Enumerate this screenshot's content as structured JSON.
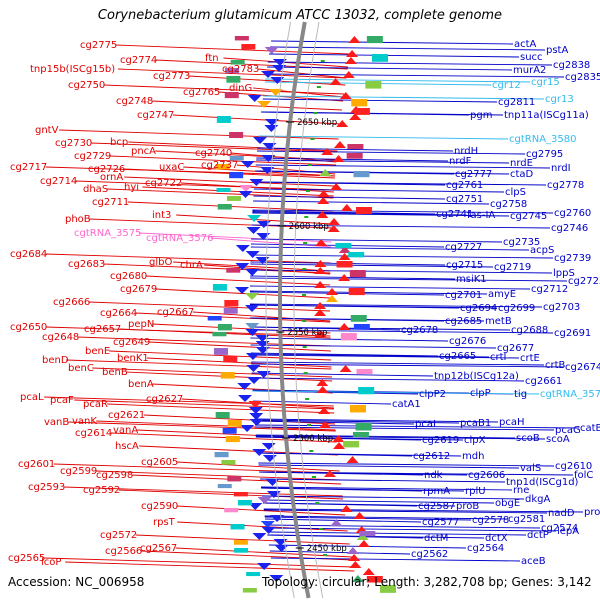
{
  "title": "Corynebacterium glutamicum ATCC 13032, complete genome",
  "footer": {
    "accession": "Accession: NC_006958",
    "summary": "Topology: circular; Length: 3,282,708 bp; Genes: 3,142"
  },
  "ruler_ticks": [
    "2650 kbp",
    "2600 kbp",
    "2550 kbp",
    "2500 kbp",
    "2450 kbp"
  ],
  "colors": {
    "reverse_strand_label": "#e00000",
    "forward_strand_label": "#0000c8",
    "trna_reverse": "#ff66cc",
    "trna_forward": "#33bbee",
    "backbone": "#888888"
  },
  "left_labels": [
    "cg2775",
    "cg2774",
    "ftn",
    "tnp15b(ISCg15b)",
    "cg2773",
    "cg2783",
    "cg2750",
    "cg2765",
    "dinG",
    "cg2748",
    "cg2747",
    "gntV",
    "cg2730",
    "bcp",
    "pncA",
    "cg2729",
    "cg2740",
    "cg2726",
    "uxaC",
    "cg2737",
    "cg2717",
    "ornA",
    "cg2714",
    "dhaS",
    "hyi",
    "cg2722",
    "cg2711",
    "int3",
    "phoB",
    "cgtRNA_3575",
    "cgtRNA_3576",
    "cg2684",
    "glbO",
    "chrA",
    "cg2683",
    "cg2680",
    "cg2679",
    "cg2666",
    "cg2664",
    "cg2667",
    "pepN",
    "cg2650",
    "cg2657",
    "cg2648",
    "cg2649",
    "benE",
    "benK1",
    "benD",
    "benC",
    "benB",
    "benA",
    "pcaL",
    "pcaF",
    "pcaR",
    "cg2627",
    "cg2621",
    "vanB",
    "vanK",
    "cg2614",
    "vanA",
    "hscA",
    "cg2605",
    "cg2601",
    "cg2599",
    "cg2598",
    "cg2593",
    "cg2592",
    "cg2590",
    "rpsT",
    "cg2572",
    "cg2566",
    "cg2567",
    "cg2565",
    "lcoP"
  ],
  "right_labels": [
    "actA",
    "pstA",
    "succ",
    "cg2838",
    "murA2",
    "cg2835",
    "cgr12",
    "cgr15",
    "cgr13",
    "cg2811",
    "pgm",
    "tnp11a(ISCg11a)",
    "cgtRNA_3580",
    "nrdH",
    "cg2795",
    "nrdF",
    "nrdE",
    "nrdI",
    "cg2777",
    "ctaD",
    "cg2778",
    "cg2761",
    "clpS",
    "cg2751",
    "cg2758",
    "cg2741",
    "fas-IA",
    "cg2745",
    "cg2760",
    "cg2746",
    "cg2727",
    "cg2735",
    "acpS",
    "cg2739",
    "cg2715",
    "cg2719",
    "lppS",
    "msiK1",
    "cg2723",
    "cg2701",
    "amyE",
    "cg2712",
    "cg2694",
    "cg2699",
    "cg2703",
    "cg2685",
    "metB",
    "cg2688",
    "cg2691",
    "cg2678",
    "cg2676",
    "cg2677",
    "cg2665",
    "crtI",
    "crtE",
    "crtB",
    "cg2674",
    "tnp12b(ISCg12a)",
    "cg2661",
    "clpP2",
    "clpP",
    "tig",
    "cgtRNA_3573",
    "catA1",
    "pcaI",
    "pcaB1",
    "pcaH",
    "pcaG",
    "catB",
    "cg2619",
    "clpX",
    "scoB",
    "scoA",
    "cg2612",
    "mdh",
    "ndk",
    "cg2606",
    "valS",
    "cg2610",
    "tnp1d(ISCg1d)",
    "folC",
    "rpmA",
    "rplU",
    "rne",
    "cg2587",
    "proB",
    "obgE",
    "dkgA",
    "cg2577",
    "cg2578",
    "cg2581",
    "nadD",
    "proA",
    "cg2574",
    "dctM",
    "dctX",
    "dctP",
    "lepA",
    "cg2564",
    "cg2562",
    "aceB"
  ]
}
